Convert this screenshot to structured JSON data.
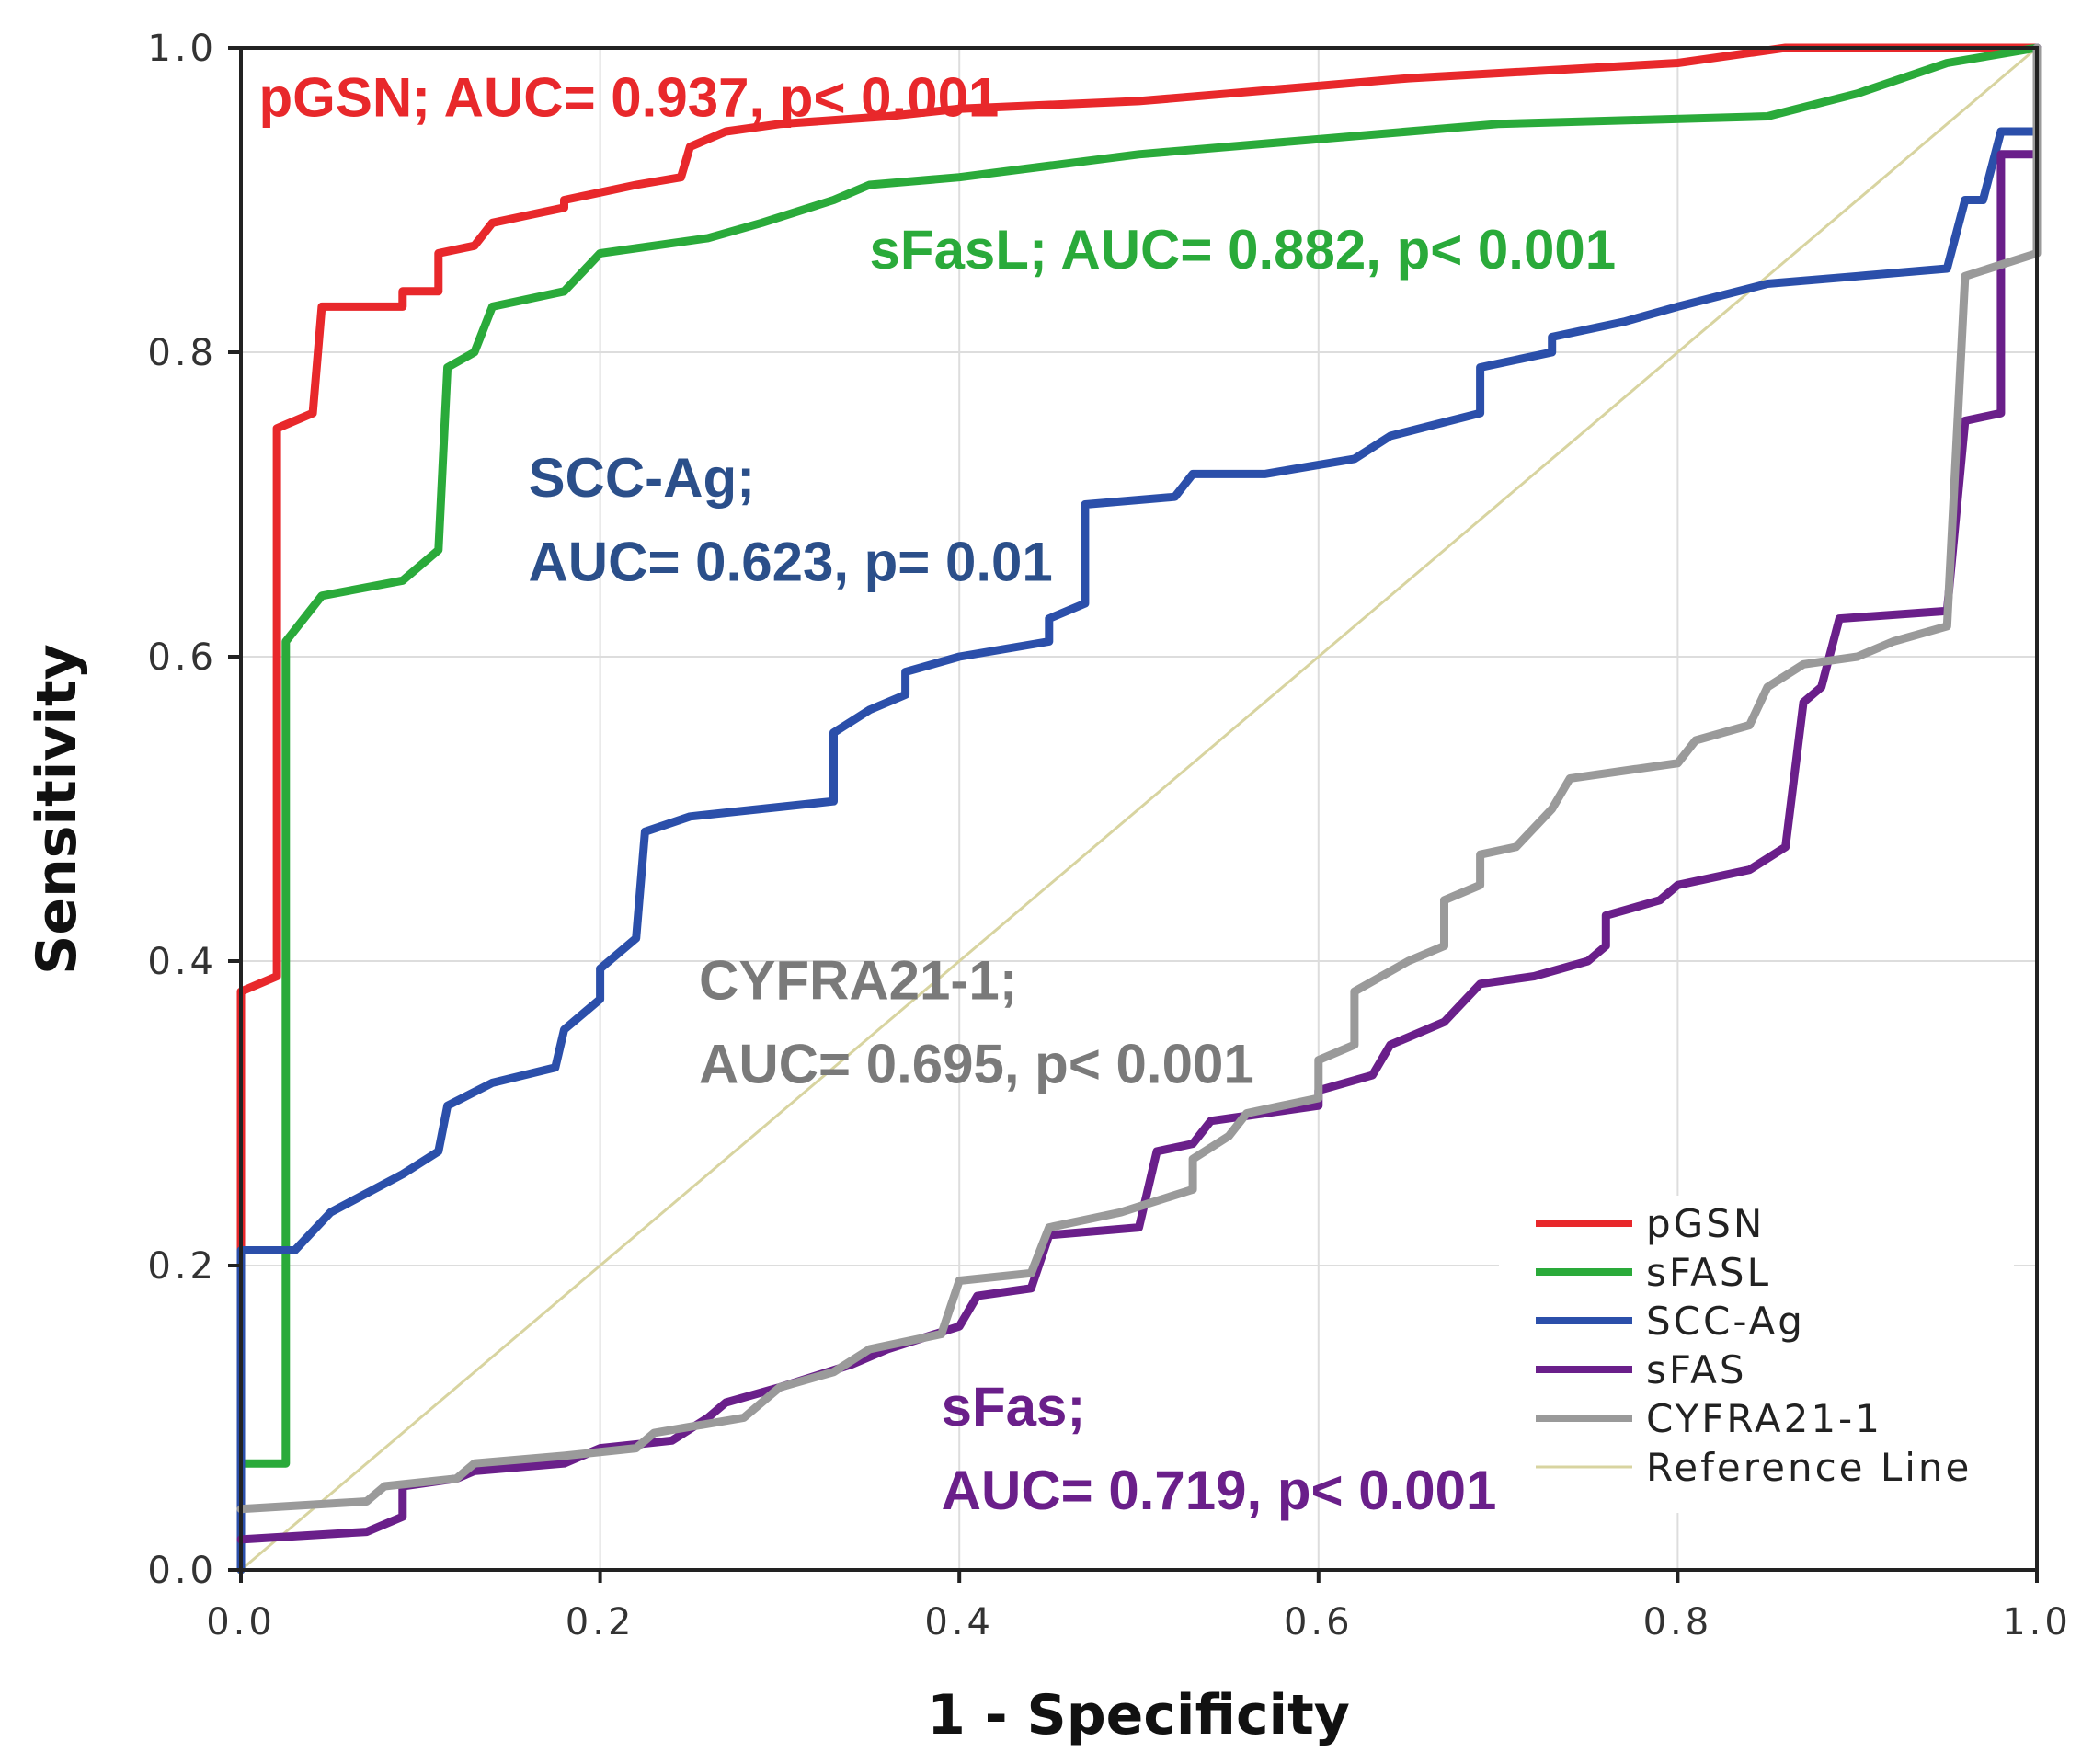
{
  "chart_data": {
    "type": "line",
    "xlabel": "1 - Specificity",
    "ylabel": "Sensitivity",
    "xlim": [
      0,
      1
    ],
    "ylim": [
      0,
      1
    ],
    "grid": true,
    "legend_position": "bottom-right",
    "x_ticks": [
      "0.0",
      "0.2",
      "0.4",
      "0.6",
      "0.8",
      "1.0"
    ],
    "y_ticks": [
      "0.0",
      "0.2",
      "0.4",
      "0.6",
      "0.8",
      "1.0"
    ],
    "series": [
      {
        "name": "pGSN",
        "color": "#e8282b",
        "points": [
          [
            0,
            0
          ],
          [
            0,
            0.38
          ],
          [
            0.02,
            0.39
          ],
          [
            0.02,
            0.75
          ],
          [
            0.04,
            0.76
          ],
          [
            0.045,
            0.83
          ],
          [
            0.09,
            0.83
          ],
          [
            0.09,
            0.84
          ],
          [
            0.11,
            0.84
          ],
          [
            0.11,
            0.865
          ],
          [
            0.13,
            0.87
          ],
          [
            0.14,
            0.885
          ],
          [
            0.16,
            0.89
          ],
          [
            0.18,
            0.895
          ],
          [
            0.18,
            0.9
          ],
          [
            0.22,
            0.91
          ],
          [
            0.245,
            0.915
          ],
          [
            0.25,
            0.935
          ],
          [
            0.27,
            0.945
          ],
          [
            0.3,
            0.95
          ],
          [
            0.36,
            0.955
          ],
          [
            0.4,
            0.96
          ],
          [
            0.5,
            0.965
          ],
          [
            0.55,
            0.97
          ],
          [
            0.65,
            0.98
          ],
          [
            0.8,
            0.99
          ],
          [
            0.86,
            1.0
          ],
          [
            1,
            1.0
          ]
        ]
      },
      {
        "name": "sFASL",
        "color": "#2aaa3a",
        "points": [
          [
            0,
            0
          ],
          [
            0,
            0.07
          ],
          [
            0.025,
            0.07
          ],
          [
            0.025,
            0.61
          ],
          [
            0.045,
            0.64
          ],
          [
            0.09,
            0.65
          ],
          [
            0.11,
            0.67
          ],
          [
            0.115,
            0.79
          ],
          [
            0.13,
            0.8
          ],
          [
            0.14,
            0.83
          ],
          [
            0.18,
            0.84
          ],
          [
            0.2,
            0.865
          ],
          [
            0.23,
            0.87
          ],
          [
            0.26,
            0.875
          ],
          [
            0.29,
            0.885
          ],
          [
            0.33,
            0.9
          ],
          [
            0.35,
            0.91
          ],
          [
            0.4,
            0.915
          ],
          [
            0.5,
            0.93
          ],
          [
            0.6,
            0.94
          ],
          [
            0.7,
            0.95
          ],
          [
            0.85,
            0.955
          ],
          [
            0.9,
            0.97
          ],
          [
            0.95,
            0.99
          ],
          [
            1,
            1.0
          ]
        ]
      },
      {
        "name": "SCC-Ag",
        "color": "#2b4faa",
        "points": [
          [
            0,
            0
          ],
          [
            0,
            0.21
          ],
          [
            0.03,
            0.21
          ],
          [
            0.05,
            0.235
          ],
          [
            0.09,
            0.26
          ],
          [
            0.11,
            0.275
          ],
          [
            0.115,
            0.305
          ],
          [
            0.14,
            0.32
          ],
          [
            0.175,
            0.33
          ],
          [
            0.18,
            0.355
          ],
          [
            0.2,
            0.375
          ],
          [
            0.2,
            0.395
          ],
          [
            0.22,
            0.415
          ],
          [
            0.225,
            0.485
          ],
          [
            0.25,
            0.495
          ],
          [
            0.33,
            0.505
          ],
          [
            0.33,
            0.55
          ],
          [
            0.35,
            0.565
          ],
          [
            0.37,
            0.575
          ],
          [
            0.37,
            0.59
          ],
          [
            0.4,
            0.6
          ],
          [
            0.45,
            0.61
          ],
          [
            0.45,
            0.625
          ],
          [
            0.47,
            0.635
          ],
          [
            0.47,
            0.7
          ],
          [
            0.52,
            0.705
          ],
          [
            0.53,
            0.72
          ],
          [
            0.57,
            0.72
          ],
          [
            0.62,
            0.73
          ],
          [
            0.64,
            0.745
          ],
          [
            0.69,
            0.76
          ],
          [
            0.69,
            0.79
          ],
          [
            0.73,
            0.8
          ],
          [
            0.73,
            0.81
          ],
          [
            0.77,
            0.82
          ],
          [
            0.8,
            0.83
          ],
          [
            0.85,
            0.845
          ],
          [
            0.9,
            0.85
          ],
          [
            0.95,
            0.855
          ],
          [
            0.96,
            0.9
          ],
          [
            0.97,
            0.9
          ],
          [
            0.98,
            0.945
          ],
          [
            1,
            0.945
          ],
          [
            1,
            1.0
          ]
        ]
      },
      {
        "name": "sFAS",
        "color": "#6a1f8a",
        "points": [
          [
            0,
            0.02
          ],
          [
            0.07,
            0.025
          ],
          [
            0.09,
            0.035
          ],
          [
            0.09,
            0.055
          ],
          [
            0.12,
            0.06
          ],
          [
            0.13,
            0.065
          ],
          [
            0.18,
            0.07
          ],
          [
            0.2,
            0.08
          ],
          [
            0.24,
            0.085
          ],
          [
            0.26,
            0.1
          ],
          [
            0.27,
            0.11
          ],
          [
            0.3,
            0.12
          ],
          [
            0.34,
            0.135
          ],
          [
            0.36,
            0.145
          ],
          [
            0.4,
            0.16
          ],
          [
            0.41,
            0.18
          ],
          [
            0.44,
            0.185
          ],
          [
            0.45,
            0.22
          ],
          [
            0.5,
            0.225
          ],
          [
            0.51,
            0.275
          ],
          [
            0.53,
            0.28
          ],
          [
            0.54,
            0.295
          ],
          [
            0.57,
            0.3
          ],
          [
            0.6,
            0.305
          ],
          [
            0.6,
            0.315
          ],
          [
            0.63,
            0.325
          ],
          [
            0.64,
            0.345
          ],
          [
            0.65,
            0.35
          ],
          [
            0.67,
            0.36
          ],
          [
            0.69,
            0.385
          ],
          [
            0.72,
            0.39
          ],
          [
            0.75,
            0.4
          ],
          [
            0.76,
            0.41
          ],
          [
            0.76,
            0.43
          ],
          [
            0.79,
            0.44
          ],
          [
            0.8,
            0.45
          ],
          [
            0.84,
            0.46
          ],
          [
            0.86,
            0.475
          ],
          [
            0.87,
            0.57
          ],
          [
            0.88,
            0.58
          ],
          [
            0.89,
            0.625
          ],
          [
            0.95,
            0.63
          ],
          [
            0.96,
            0.755
          ],
          [
            0.98,
            0.76
          ],
          [
            0.98,
            0.93
          ],
          [
            1,
            0.93
          ],
          [
            1,
            1.0
          ]
        ]
      },
      {
        "name": "CYFRA21-1",
        "color": "#9a9a9a",
        "points": [
          [
            0,
            0.04
          ],
          [
            0.07,
            0.045
          ],
          [
            0.08,
            0.055
          ],
          [
            0.12,
            0.06
          ],
          [
            0.13,
            0.07
          ],
          [
            0.18,
            0.075
          ],
          [
            0.22,
            0.08
          ],
          [
            0.23,
            0.09
          ],
          [
            0.28,
            0.1
          ],
          [
            0.3,
            0.12
          ],
          [
            0.33,
            0.13
          ],
          [
            0.35,
            0.145
          ],
          [
            0.39,
            0.155
          ],
          [
            0.4,
            0.19
          ],
          [
            0.44,
            0.195
          ],
          [
            0.45,
            0.225
          ],
          [
            0.49,
            0.235
          ],
          [
            0.53,
            0.25
          ],
          [
            0.53,
            0.27
          ],
          [
            0.55,
            0.285
          ],
          [
            0.56,
            0.3
          ],
          [
            0.58,
            0.305
          ],
          [
            0.6,
            0.31
          ],
          [
            0.6,
            0.335
          ],
          [
            0.62,
            0.345
          ],
          [
            0.62,
            0.38
          ],
          [
            0.65,
            0.4
          ],
          [
            0.67,
            0.41
          ],
          [
            0.67,
            0.44
          ],
          [
            0.69,
            0.45
          ],
          [
            0.69,
            0.47
          ],
          [
            0.71,
            0.475
          ],
          [
            0.73,
            0.5
          ],
          [
            0.74,
            0.52
          ],
          [
            0.8,
            0.53
          ],
          [
            0.81,
            0.545
          ],
          [
            0.84,
            0.555
          ],
          [
            0.85,
            0.58
          ],
          [
            0.87,
            0.595
          ],
          [
            0.9,
            0.6
          ],
          [
            0.92,
            0.61
          ],
          [
            0.95,
            0.62
          ],
          [
            0.96,
            0.85
          ],
          [
            1,
            0.865
          ],
          [
            1,
            1.0
          ]
        ]
      },
      {
        "name": "Reference Line",
        "color": "#d8d4a0",
        "points": [
          [
            0,
            0
          ],
          [
            1,
            1
          ]
        ]
      }
    ],
    "annotations": [
      {
        "id": "pgsn",
        "text": "pGSN; AUC= 0.937, p< 0.001",
        "color": "#e8282b",
        "x": 0.01,
        "y": 0.955
      },
      {
        "id": "sfasl",
        "text": "sFasL; AUC= 0.882, p< 0.001",
        "color": "#2aaa3a",
        "x": 0.35,
        "y": 0.855
      },
      {
        "id": "scc1",
        "text": "SCC-Ag;",
        "color": "#2b4f8a",
        "x": 0.16,
        "y": 0.705
      },
      {
        "id": "scc2",
        "text": "AUC= 0.623, p= 0.01",
        "color": "#2b4f8a",
        "x": 0.16,
        "y": 0.65
      },
      {
        "id": "cyfra1",
        "text": "CYFRA21-1;",
        "color": "#7a7a7a",
        "x": 0.255,
        "y": 0.375
      },
      {
        "id": "cyfra2",
        "text": "AUC= 0.695, p< 0.001",
        "color": "#7a7a7a",
        "x": 0.255,
        "y": 0.32
      },
      {
        "id": "sfas1",
        "text": "sFas;",
        "color": "#6a1f8a",
        "x": 0.39,
        "y": 0.095
      },
      {
        "id": "sfas2",
        "text": "AUC= 0.719, p< 0.001",
        "color": "#6a1f8a",
        "x": 0.39,
        "y": 0.04
      }
    ]
  }
}
